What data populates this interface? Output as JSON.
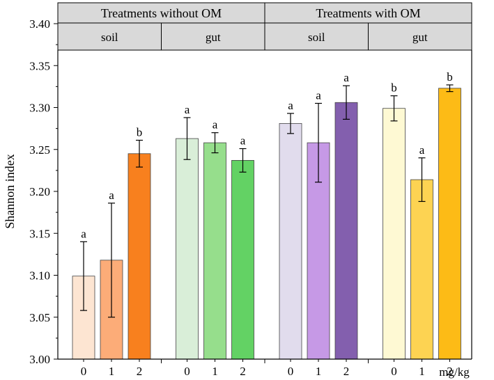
{
  "chart_data": {
    "type": "bar",
    "ylabel": "Shannon index",
    "xlabel": "mg/kg",
    "ylim": [
      3.0,
      3.4
    ],
    "yticks": [
      "3.00",
      "3.05",
      "3.10",
      "3.15",
      "3.20",
      "3.25",
      "3.30",
      "3.35",
      "3.40"
    ],
    "grid": false,
    "header_top": [
      "Treatments without OM",
      "Treatments with OM"
    ],
    "header_sub": [
      "soil",
      "gut",
      "soil",
      "gut"
    ],
    "groups": [
      {
        "categories": [
          "0",
          "1",
          "2"
        ],
        "values": [
          3.099,
          3.118,
          3.245
        ],
        "errors": [
          0.041,
          0.068,
          0.016
        ],
        "letters": [
          "a",
          "a",
          "b"
        ],
        "colors": [
          "#fde5d2",
          "#fcac78",
          "#f8801e"
        ]
      },
      {
        "categories": [
          "0",
          "1",
          "2"
        ],
        "values": [
          3.263,
          3.258,
          3.237
        ],
        "errors": [
          0.025,
          0.012,
          0.014
        ],
        "letters": [
          "a",
          "a",
          "a"
        ],
        "colors": [
          "#d9eed8",
          "#96de8c",
          "#63d264"
        ]
      },
      {
        "categories": [
          "0",
          "1",
          "2"
        ],
        "values": [
          3.281,
          3.258,
          3.306
        ],
        "errors": [
          0.012,
          0.047,
          0.02
        ],
        "letters": [
          "a",
          "a",
          "a"
        ],
        "colors": [
          "#e1dced",
          "#c699e6",
          "#835fae"
        ]
      },
      {
        "categories": [
          "0",
          "1",
          "2"
        ],
        "values": [
          3.299,
          3.214,
          3.323
        ],
        "errors": [
          0.015,
          0.026,
          0.004
        ],
        "letters": [
          "b",
          "a",
          "b"
        ],
        "colors": [
          "#fef9d3",
          "#fdd352",
          "#fdbb16"
        ]
      }
    ]
  },
  "colors": {
    "header_fill": "#d9d9d9",
    "axis": "#000000",
    "bar_stroke": "#444444"
  }
}
